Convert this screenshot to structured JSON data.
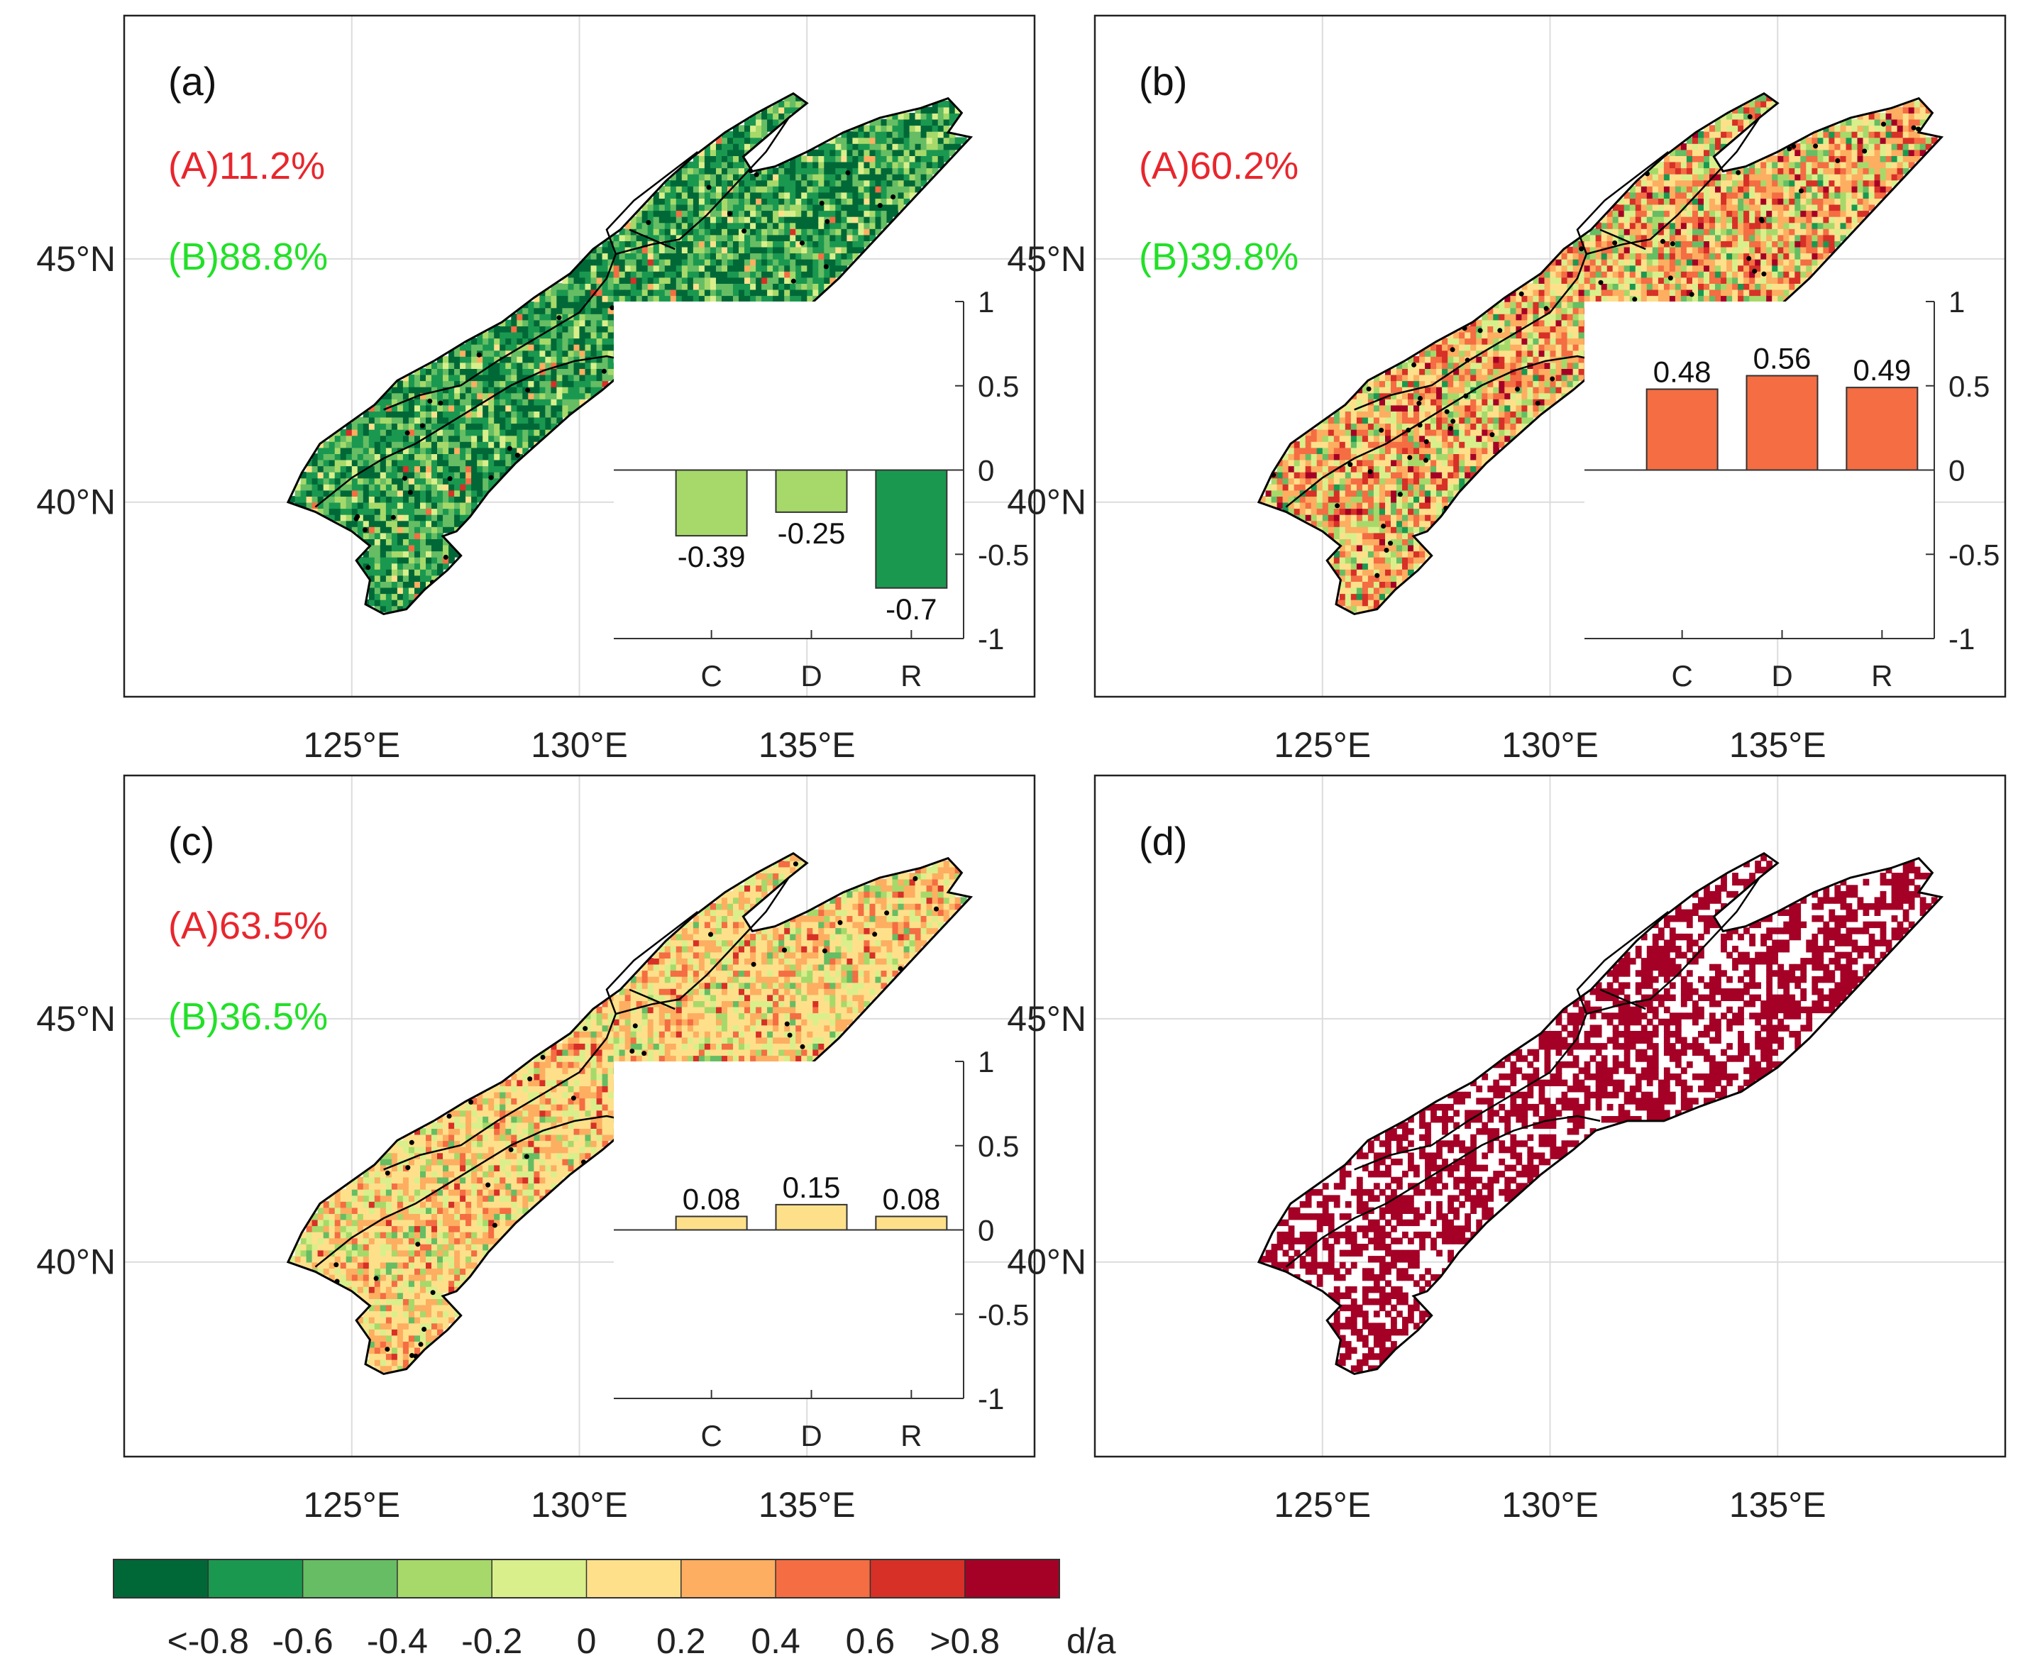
{
  "figure": {
    "colorbar": {
      "colors": [
        "#006837",
        "#1a9850",
        "#66bd63",
        "#a6d96a",
        "#d9ef8b",
        "#fee08b",
        "#fdae61",
        "#f46d43",
        "#d73027",
        "#a50026"
      ],
      "tick_labels": [
        "<-0.8",
        "-0.6",
        "-0.4",
        "-0.2",
        "0",
        "0.2",
        "0.4",
        "0.6",
        ">0.8"
      ],
      "unit": "d/a"
    },
    "axes": {
      "lon_ticks": [
        125,
        130,
        135
      ],
      "lon_tick_labels": [
        "125°E",
        "130°E",
        "135°E"
      ],
      "lat_ticks": [
        45,
        40
      ],
      "lat_tick_labels": [
        "45°N",
        "40°N"
      ],
      "lon_range": [
        120,
        140
      ],
      "lat_range": [
        36,
        50
      ]
    },
    "inset_axis": {
      "ylim": [
        -1,
        1
      ],
      "y_ticks": [
        1,
        0.5,
        0,
        -0.5,
        -1
      ],
      "y_tick_labels": [
        "1",
        "0.5",
        "0",
        "-0.5",
        "-1"
      ],
      "categories": [
        "C",
        "D",
        "R"
      ]
    }
  },
  "chart_data": [
    {
      "type": "bar",
      "panel_label": "(a)",
      "percent_A": "(A)11.2%",
      "percent_B": "(B)88.8%",
      "categories": [
        "C",
        "D",
        "R"
      ],
      "values": [
        -0.39,
        -0.25,
        -0.7
      ],
      "value_labels": [
        "-0.39",
        "-0.25",
        "-0.7"
      ],
      "bar_colors": [
        "#a6d96a",
        "#a6d96a",
        "#1a9850"
      ],
      "ylim": [
        -1,
        1
      ],
      "map_palette": "green"
    },
    {
      "type": "bar",
      "panel_label": "(b)",
      "percent_A": "(A)60.2%",
      "percent_B": "(B)39.8%",
      "categories": [
        "C",
        "D",
        "R"
      ],
      "values": [
        0.48,
        0.56,
        0.49
      ],
      "value_labels": [
        "0.48",
        "0.56",
        "0.49"
      ],
      "bar_colors": [
        "#f46d43",
        "#f46d43",
        "#f46d43"
      ],
      "ylim": [
        -1,
        1
      ],
      "map_palette": "red"
    },
    {
      "type": "bar",
      "panel_label": "(c)",
      "percent_A": "(A)63.5%",
      "percent_B": "(B)36.5%",
      "categories": [
        "C",
        "D",
        "R"
      ],
      "values": [
        0.08,
        0.15,
        0.08
      ],
      "value_labels": [
        "0.08",
        "0.15",
        "0.08"
      ],
      "bar_colors": [
        "#fee08b",
        "#fee08b",
        "#fee08b"
      ],
      "ylim": [
        -1,
        1
      ],
      "map_palette": "yellow"
    },
    {
      "type": "map",
      "panel_label": "(d)",
      "map_palette": "binary",
      "fill_color": "#a50026"
    }
  ]
}
